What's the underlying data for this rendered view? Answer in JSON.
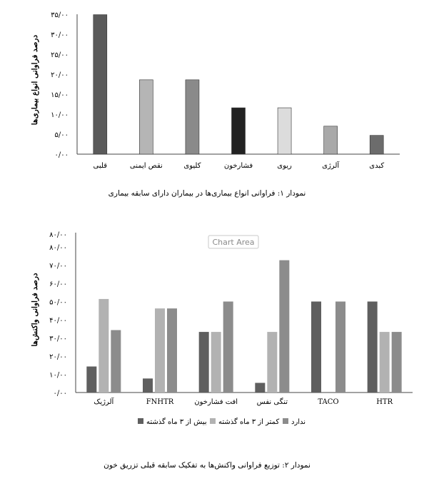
{
  "chart_data": [
    {
      "type": "bar",
      "ylabel": "درصد فراوانی انواع بیماری‌ها",
      "caption": "نمودار ۱: فراوانی انواع بیماری‌ها در بیماران دارای سابقه بیماری",
      "ylim": [
        0,
        35
      ],
      "yticks": [
        "۰/۰۰",
        "۵/۰۰",
        "۱۰/۰۰",
        "۱۵/۰۰",
        "۲۰/۰۰",
        "۲۵/۰۰",
        "۳۰/۰۰",
        "۳۵/۰۰"
      ],
      "categories": [
        "قلبی",
        "نقص ایمنی",
        "کلیوی",
        "فشارخون",
        "ریوی",
        "آلرژی",
        "کبدی"
      ],
      "values": [
        34.9,
        18.6,
        18.6,
        11.6,
        11.6,
        7.0,
        4.7
      ],
      "colors": [
        "#5a5a5a",
        "#b5b5b5",
        "#8a8a8a",
        "#222222",
        "#dcdcdc",
        "#a9a9a9",
        "#6c6c6c"
      ]
    },
    {
      "type": "bar",
      "ylabel": "درصد فراوانی واکنش‌ها",
      "caption": "نمودار ۲: توزیع فراوانی واکنش‌ها به تفکیک سابقه قبلی تزریق خون",
      "chart_area_label": "Chart Area",
      "ylim": [
        0,
        80
      ],
      "top_label": "۸۰/۰۰",
      "yticks": [
        "۰/۰۰",
        "۱۰/۰۰",
        "۲۰/۰۰",
        "۳۰/۰۰",
        "۴۰/۰۰",
        "۵۰/۰۰",
        "۶۰/۰۰",
        "۷۰/۰۰",
        "۸۰/۰۰"
      ],
      "categories": [
        "آلرژیک",
        "FNHTR",
        "افت فشارخون",
        "تنگی نفس",
        "TACO",
        "HTR"
      ],
      "series": [
        {
          "name": "بیش از ۳ ماه گذشته",
          "color": "#5f5f5f",
          "values": [
            14.3,
            7.7,
            33.3,
            5.3,
            50.0,
            50.0
          ]
        },
        {
          "name": "کمتر از ۳ ماه گذشته",
          "color": "#b2b2b2",
          "values": [
            51.4,
            46.2,
            33.3,
            33.3,
            0,
            33.3
          ]
        },
        {
          "name": "ندارد",
          "color": "#8c8c8c",
          "values": [
            34.3,
            46.2,
            50.0,
            72.7,
            50.0,
            33.3
          ]
        }
      ]
    }
  ]
}
